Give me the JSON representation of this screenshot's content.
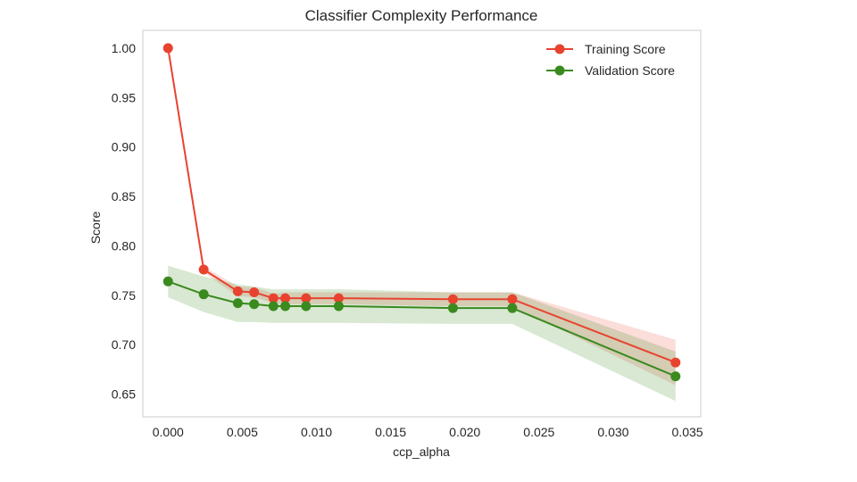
{
  "chart_data": {
    "type": "line",
    "title": "Classifier Complexity Performance",
    "xlabel": "ccp_alpha",
    "ylabel": "Score",
    "xlim": [
      -0.0017,
      0.0359
    ],
    "ylim": [
      0.627,
      1.018
    ],
    "xticks": [
      0.0,
      0.005,
      0.01,
      0.015,
      0.02,
      0.025,
      0.03,
      0.035
    ],
    "xtick_labels": [
      "0.000",
      "0.005",
      "0.010",
      "0.015",
      "0.020",
      "0.025",
      "0.030",
      "0.035"
    ],
    "yticks": [
      0.65,
      0.7,
      0.75,
      0.8,
      0.85,
      0.9,
      0.95,
      1.0
    ],
    "ytick_labels": [
      "0.65",
      "0.70",
      "0.75",
      "0.80",
      "0.85",
      "0.90",
      "0.95",
      "1.00"
    ],
    "grid": false,
    "legend": "top-right",
    "x": [
      0.0,
      0.0024,
      0.0047,
      0.0058,
      0.0071,
      0.0079,
      0.0093,
      0.0115,
      0.0192,
      0.0232,
      0.0342
    ],
    "series": [
      {
        "name": "Training Score",
        "color": "#e8432f",
        "values": [
          1.0,
          0.776,
          0.754,
          0.753,
          0.747,
          0.747,
          0.747,
          0.747,
          0.746,
          0.746,
          0.682
        ],
        "lower": [
          1.0,
          0.773,
          0.749,
          0.748,
          0.742,
          0.741,
          0.741,
          0.741,
          0.739,
          0.739,
          0.659
        ],
        "upper": [
          1.0,
          0.779,
          0.759,
          0.758,
          0.752,
          0.753,
          0.753,
          0.753,
          0.753,
          0.753,
          0.705
        ]
      },
      {
        "name": "Validation Score",
        "color": "#3a8a1f",
        "values": [
          0.764,
          0.751,
          0.742,
          0.741,
          0.739,
          0.739,
          0.739,
          0.739,
          0.737,
          0.737,
          0.668
        ],
        "lower": [
          0.748,
          0.733,
          0.723,
          0.723,
          0.722,
          0.722,
          0.722,
          0.722,
          0.721,
          0.721,
          0.643
        ],
        "upper": [
          0.78,
          0.769,
          0.761,
          0.759,
          0.756,
          0.756,
          0.756,
          0.756,
          0.753,
          0.753,
          0.693
        ]
      }
    ]
  }
}
